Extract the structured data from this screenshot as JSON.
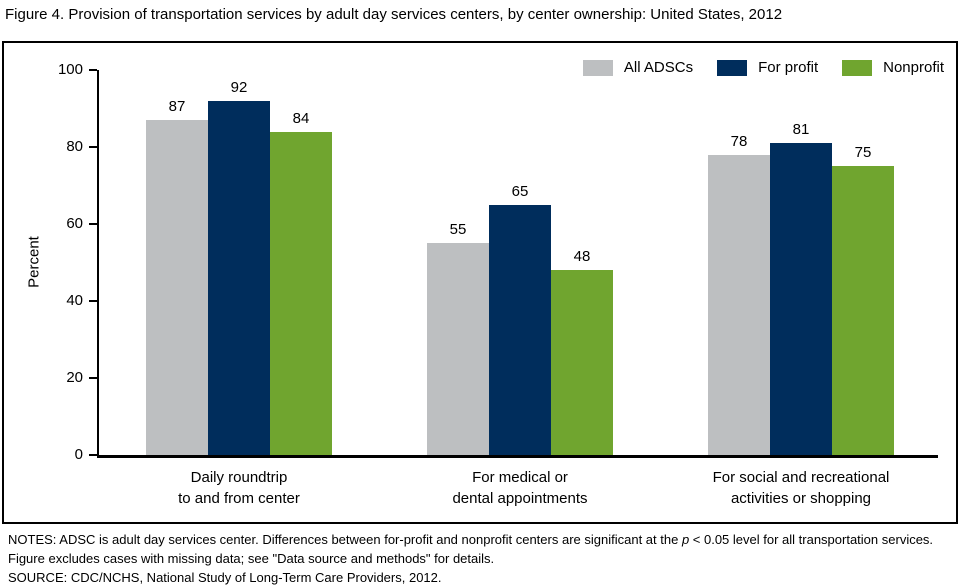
{
  "figure": {
    "title": "Figure 4. Provision of transportation services by adult day services centers, by center ownership: United States, 2012"
  },
  "chart_data": {
    "type": "bar",
    "title": "Provision of transportation services by adult day services centers, by center ownership: United States, 2012",
    "ylabel": "Percent",
    "xlabel": "",
    "ylim": [
      0,
      100
    ],
    "yticks": [
      0,
      20,
      40,
      60,
      80,
      100
    ],
    "grid": false,
    "legend_position": "top-right",
    "categories": [
      {
        "label": "Daily roundtrip to and from center",
        "lines": [
          "Daily roundtrip",
          "to and from center"
        ]
      },
      {
        "label": "For medical or dental appointments",
        "lines": [
          "For medical or",
          "dental appointments"
        ]
      },
      {
        "label": "For social and recreational activities or shopping",
        "lines": [
          "For social and recreational",
          "activities or shopping"
        ]
      }
    ],
    "series": [
      {
        "name": "All ADSCs",
        "color": "#bdbfc1",
        "values": [
          87,
          55,
          78
        ]
      },
      {
        "name": "For profit",
        "color": "#002d5c",
        "values": [
          92,
          65,
          81
        ]
      },
      {
        "name": "Nonprofit",
        "color": "#70a52f",
        "values": [
          84,
          48,
          75
        ]
      }
    ],
    "bar_value_labels": true
  },
  "colors": {
    "axis": "#000000",
    "background": "#ffffff",
    "all_adscs": "#bdbfc1",
    "for_profit": "#002d5c",
    "nonprofit": "#70a52f"
  },
  "notes": {
    "notes_pre_italic": "NOTES: ADSC is adult day services center. Differences between for-profit and nonprofit centers are significant at the ",
    "notes_italic": "p",
    "notes_post_italic": " < 0.05 level for all transportation services. Figure excludes cases with missing data; see \"Data source and methods\" for details.",
    "source": "SOURCE: CDC/NCHS, National Study of Long-Term Care Providers, 2012."
  }
}
